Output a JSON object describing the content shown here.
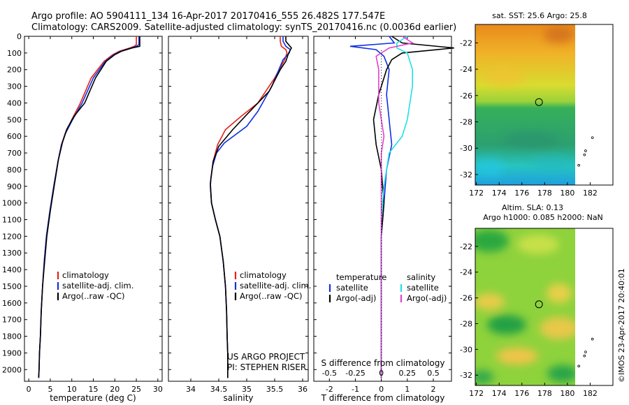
{
  "header": {
    "line1": "Argo profile: AO 5904111_134 16-Apr-2017 20170416_555 26.482S 177.547E",
    "line2": "Climatology: CARS2009. Satellite-adjusted climatology: synTS_20170416.nc (0.0036d earlier)"
  },
  "colors": {
    "climatology": "#e8201a",
    "satellite": "#1030e0",
    "argo": "#000000",
    "sal_sat": "#20e0e8",
    "sal_argo": "#e040d0"
  },
  "chart_data": [
    {
      "type": "line",
      "xlabel": "temperature (deg C)",
      "xlim": [
        -1,
        31
      ],
      "xticks": [
        0,
        5,
        10,
        15,
        20,
        25,
        30
      ],
      "ylim": [
        2070,
        0
      ],
      "yticks": [
        0,
        100,
        200,
        300,
        400,
        500,
        600,
        700,
        800,
        900,
        1000,
        1100,
        1200,
        1300,
        1400,
        1500,
        1600,
        1700,
        1800,
        1900,
        2000
      ],
      "legend": [
        "climatology",
        "satellite-adj. clim.",
        "Argo(..raw -QC)"
      ],
      "series": [
        {
          "name": "climatology",
          "color": "#e8201a",
          "x": [
            25.0,
            25.0,
            24.5,
            23.5,
            21.0,
            19.5,
            17.5,
            14.5,
            12.0,
            10.0,
            8.5,
            7.6,
            6.8,
            5.8,
            4.9,
            4.1,
            3.6,
            3.2,
            2.9,
            2.7,
            2.5,
            2.4,
            2.3
          ],
          "y": [
            0,
            50,
            60,
            70,
            90,
            110,
            150,
            250,
            400,
            500,
            580,
            650,
            750,
            900,
            1050,
            1200,
            1350,
            1500,
            1650,
            1800,
            1900,
            2000,
            2050
          ]
        },
        {
          "name": "satellite-adj. clim.",
          "color": "#1030e0",
          "x": [
            25.6,
            25.6,
            25.0,
            23.8,
            21.3,
            19.8,
            17.8,
            15.0,
            12.4,
            10.2,
            8.6,
            7.6,
            6.8,
            5.8,
            4.9,
            4.1,
            3.6,
            3.2,
            2.9,
            2.7,
            2.5,
            2.4,
            2.3
          ],
          "y": [
            0,
            50,
            60,
            70,
            90,
            110,
            150,
            250,
            400,
            500,
            580,
            650,
            750,
            900,
            1050,
            1200,
            1350,
            1500,
            1650,
            1800,
            1900,
            2000,
            2050
          ]
        },
        {
          "name": "Argo(..raw -QC)",
          "color": "#000000",
          "x": [
            25.8,
            25.8,
            25.8,
            24.0,
            21.5,
            20.0,
            18.0,
            15.5,
            13.0,
            10.5,
            8.8,
            7.8,
            6.9,
            5.9,
            5.0,
            4.2,
            3.7,
            3.2,
            2.9,
            2.7,
            2.5,
            2.4,
            2.3
          ],
          "y": [
            0,
            50,
            60,
            70,
            90,
            110,
            150,
            250,
            400,
            480,
            560,
            640,
            740,
            900,
            1050,
            1200,
            1350,
            1500,
            1650,
            1800,
            1900,
            2000,
            2050
          ]
        }
      ]
    },
    {
      "type": "line",
      "xlabel": "salinity",
      "xlim": [
        33.6,
        36.1
      ],
      "xticks": [
        34,
        34.5,
        35,
        35.5,
        36
      ],
      "ylim": [
        2070,
        0
      ],
      "legend": [
        "climatology",
        "satellite-adj. clim.",
        "Argo(..raw -QC)"
      ],
      "annotation": [
        "US ARGO PROJECT",
        "PI: STEPHEN RISER"
      ],
      "series": [
        {
          "name": "climatology",
          "color": "#e8201a",
          "x": [
            35.6,
            35.6,
            35.62,
            35.7,
            35.72,
            35.68,
            35.5,
            35.2,
            34.9,
            34.62,
            34.48,
            34.4,
            34.35,
            34.37,
            34.44,
            34.52,
            34.58,
            34.62,
            34.64,
            34.65,
            34.66,
            34.66,
            34.66
          ],
          "y": [
            0,
            30,
            60,
            80,
            100,
            140,
            250,
            400,
            480,
            560,
            650,
            750,
            880,
            1000,
            1100,
            1200,
            1350,
            1500,
            1650,
            1800,
            1900,
            2000,
            2050
          ]
        },
        {
          "name": "satellite-adj. clim.",
          "color": "#1030e0",
          "x": [
            35.65,
            35.65,
            35.7,
            35.78,
            35.76,
            35.65,
            35.45,
            35.2,
            35.0,
            34.6,
            34.46,
            34.39,
            34.35,
            34.37,
            34.44,
            34.52,
            34.58,
            34.62,
            34.64,
            34.65,
            34.66,
            34.66,
            34.66
          ],
          "y": [
            0,
            30,
            60,
            80,
            100,
            140,
            300,
            450,
            540,
            640,
            700,
            780,
            880,
            1000,
            1100,
            1200,
            1350,
            1500,
            1650,
            1800,
            1900,
            2000,
            2050
          ]
        },
        {
          "name": "Argo(..raw -QC)",
          "color": "#000000",
          "x": [
            35.7,
            35.7,
            35.8,
            35.75,
            35.7,
            35.6,
            35.4,
            35.0,
            34.75,
            34.5,
            34.4,
            34.36,
            34.35,
            34.37,
            34.44,
            34.52,
            34.58,
            34.62,
            34.64,
            34.65,
            34.66,
            34.66,
            34.66
          ],
          "y": [
            0,
            30,
            70,
            100,
            150,
            200,
            330,
            470,
            560,
            660,
            750,
            850,
            900,
            1000,
            1100,
            1200,
            1350,
            1500,
            1650,
            1800,
            1900,
            2000,
            2050
          ]
        }
      ]
    },
    {
      "type": "line",
      "xlabel": "T difference from climatology",
      "xlabel2": "S difference from climatology",
      "xlim": [
        -2.6,
        2.7
      ],
      "xticks": [
        -2,
        -1,
        0,
        1,
        2
      ],
      "xticks2_labels": [
        "-0.5",
        "-0.25",
        "0",
        "0.25",
        "0.5"
      ],
      "xticks2_pos": [
        -2,
        -1,
        0,
        1,
        2
      ],
      "ylim": [
        2070,
        0
      ],
      "legend": [
        {
          "group": "temperature",
          "items": [
            "satellite",
            "Argo(-adj)"
          ]
        },
        {
          "group": "salinity",
          "items": [
            "satellite",
            "Argo(-adj)"
          ]
        }
      ],
      "series": [
        {
          "name": "temperature satellite",
          "color": "#1030e0",
          "x": [
            0.3,
            0.5,
            -1.2,
            -0.2,
            0.1,
            0.3,
            0.2,
            0.3,
            0.4,
            0.2,
            0.1,
            0.0,
            0.0,
            0.0,
            0.0,
            0.0,
            0.0
          ],
          "y": [
            0,
            40,
            60,
            80,
            120,
            200,
            350,
            500,
            650,
            800,
            1000,
            1200,
            1400,
            1600,
            1800,
            1950,
            2050
          ]
        },
        {
          "name": "temperature Argo(-adj)",
          "color": "#000000",
          "x": [
            0.4,
            0.8,
            2.8,
            0.8,
            0.4,
            0.2,
            -0.1,
            -0.3,
            -0.2,
            0.0,
            0.1,
            0.0,
            0.0,
            0.0,
            0.0,
            0.0,
            0.0
          ],
          "y": [
            0,
            40,
            70,
            100,
            140,
            200,
            350,
            500,
            650,
            800,
            1000,
            1200,
            1400,
            1600,
            1800,
            1950,
            2050
          ]
        },
        {
          "name": "salinity satellite",
          "color": "#20e0e8",
          "x": [
            1.0,
            0.6,
            0.6,
            1.0,
            1.2,
            1.2,
            1.1,
            1.0,
            0.8,
            0.3,
            0.1,
            0.0,
            0.0,
            0.0,
            0.0,
            0.0,
            0.0
          ],
          "y": [
            0,
            40,
            70,
            100,
            200,
            300,
            400,
            500,
            600,
            700,
            900,
            1100,
            1300,
            1500,
            1700,
            1900,
            2050
          ]
        },
        {
          "name": "salinity Argo(-adj)",
          "color": "#e040d0",
          "x": [
            0.8,
            1.2,
            0.3,
            -0.2,
            -0.1,
            -0.1,
            -0.1,
            0.0,
            0.1,
            0.0,
            0.0,
            0.0,
            0.0,
            0.0,
            0.0,
            0.0,
            0.0
          ],
          "y": [
            0,
            40,
            70,
            120,
            200,
            300,
            400,
            500,
            600,
            700,
            900,
            1100,
            1300,
            1500,
            1700,
            1900,
            2050
          ]
        }
      ]
    },
    {
      "type": "heatmap",
      "title": "sat. SST: 25.6 Argo: 25.8",
      "xticks": [
        172,
        174,
        176,
        178,
        180,
        182
      ],
      "yticks": [
        -22,
        -24,
        -26,
        -28,
        -30,
        -32
      ],
      "xlim": [
        171.9,
        184
      ],
      "ylim": [
        -32.8,
        -20.6
      ],
      "marker": [
        177.5,
        -26.5
      ]
    },
    {
      "type": "heatmap",
      "title1": "Altim. SLA: 0.13",
      "title2": "Argo h1000: 0.085 h2000: NaN",
      "xticks": [
        172,
        174,
        176,
        178,
        180,
        182
      ],
      "yticks": [
        -22,
        -24,
        -26,
        -28,
        -30,
        -32
      ],
      "xlim": [
        171.9,
        184
      ],
      "ylim": [
        -32.8,
        -20.6
      ],
      "marker": [
        177.5,
        -26.5
      ]
    }
  ],
  "side_stamp": "©IMOS 23-Apr-2017 20:40:01"
}
